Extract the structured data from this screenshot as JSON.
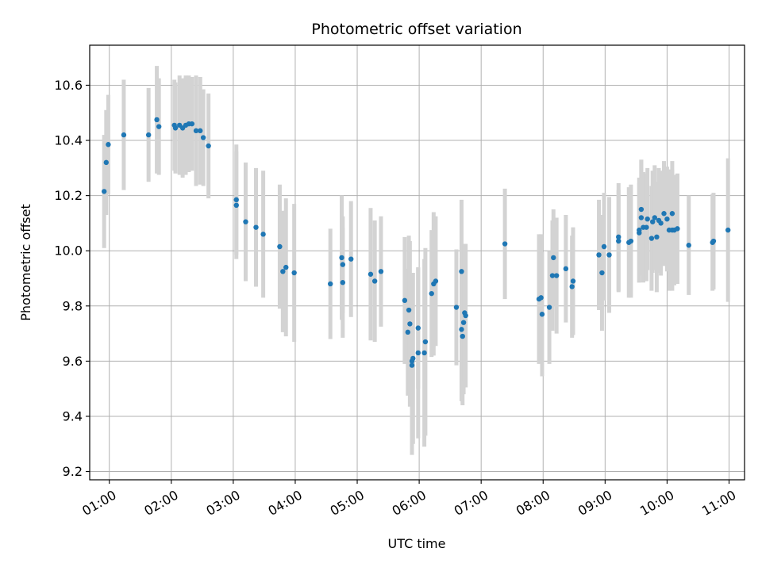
{
  "chart_data": {
    "type": "scatter",
    "title": "Photometric offset variation",
    "xlabel": "UTC time",
    "ylabel": "Photometric offset",
    "x_unit": "UTC",
    "xlim": [
      "00:41",
      "11:15"
    ],
    "ylim": [
      9.17,
      10.745
    ],
    "grid": true,
    "x_ticks": [
      "01:00",
      "02:00",
      "03:00",
      "04:00",
      "05:00",
      "06:00",
      "07:00",
      "08:00",
      "09:00",
      "10:00",
      "11:00"
    ],
    "y_ticks": [
      9.2,
      9.4,
      9.6,
      9.8,
      10.0,
      10.2,
      10.4,
      10.6
    ],
    "y_tick_labels": [
      "9.2",
      "9.4",
      "9.6",
      "9.8",
      "10.0",
      "10.2",
      "10.4",
      "10.6"
    ],
    "colors": {
      "marker": "#1f77b4",
      "errorbar": "#d3d3d3",
      "grid": "#b0b0b0"
    },
    "series": [
      {
        "marker": "point",
        "errorbar": true,
        "points": [
          [
            "00:55",
            10.215,
            0.205
          ],
          [
            "00:57",
            10.32,
            0.19
          ],
          [
            "00:59",
            10.385,
            0.18
          ],
          [
            "01:14",
            10.42,
            0.2
          ],
          [
            "01:38",
            10.42,
            0.17
          ],
          [
            "01:46",
            10.475,
            0.195
          ],
          [
            "01:48",
            10.45,
            0.175
          ],
          [
            "02:03",
            10.455,
            0.165
          ],
          [
            "02:04",
            10.445,
            0.165
          ],
          [
            "02:08",
            10.455,
            0.18
          ],
          [
            "02:11",
            10.445,
            0.18
          ],
          [
            "02:14",
            10.455,
            0.18
          ],
          [
            "02:17",
            10.46,
            0.175
          ],
          [
            "02:20",
            10.46,
            0.17
          ],
          [
            "02:24",
            10.435,
            0.2
          ],
          [
            "02:28",
            10.435,
            0.195
          ],
          [
            "02:31",
            10.41,
            0.175
          ],
          [
            "02:36",
            10.38,
            0.19
          ],
          [
            "03:03",
            10.185,
            0.2
          ],
          [
            "03:03",
            10.165,
            0.195
          ],
          [
            "03:12",
            10.105,
            0.215
          ],
          [
            "03:22",
            10.085,
            0.215
          ],
          [
            "03:29",
            10.06,
            0.23
          ],
          [
            "03:45",
            10.015,
            0.225
          ],
          [
            "03:48",
            9.925,
            0.22
          ],
          [
            "03:51",
            9.94,
            0.25
          ],
          [
            "03:59",
            9.92,
            0.25
          ],
          [
            "04:34",
            9.88,
            0.2
          ],
          [
            "04:45",
            9.975,
            0.225
          ],
          [
            "04:46",
            9.885,
            0.2
          ],
          [
            "04:46",
            9.95,
            0.175
          ],
          [
            "04:54",
            9.97,
            0.21
          ],
          [
            "05:13",
            9.915,
            0.24
          ],
          [
            "05:17",
            9.89,
            0.22
          ],
          [
            "05:23",
            9.925,
            0.2
          ],
          [
            "05:46",
            9.82,
            0.23
          ],
          [
            "05:49",
            9.705,
            0.23
          ],
          [
            "05:50",
            9.785,
            0.27
          ],
          [
            "05:51",
            9.735,
            0.3
          ],
          [
            "05:53",
            9.585,
            0.325
          ],
          [
            "05:53",
            9.6,
            0.31
          ],
          [
            "05:54",
            9.61,
            0.31
          ],
          [
            "05:59",
            9.72,
            0.22
          ],
          [
            "05:59",
            9.63,
            0.31
          ],
          [
            "06:05",
            9.63,
            0.34
          ],
          [
            "06:06",
            9.67,
            0.34
          ],
          [
            "06:12",
            9.845,
            0.23
          ],
          [
            "06:14",
            9.88,
            0.26
          ],
          [
            "06:16",
            9.89,
            0.235
          ],
          [
            "06:36",
            9.795,
            0.21
          ],
          [
            "06:41",
            9.925,
            0.26
          ],
          [
            "06:41",
            9.715,
            0.26
          ],
          [
            "06:42",
            9.69,
            0.25
          ],
          [
            "06:43",
            9.74,
            0.26
          ],
          [
            "06:44",
            9.775,
            0.25
          ],
          [
            "06:45",
            9.765,
            0.26
          ],
          [
            "07:23",
            10.025,
            0.2
          ],
          [
            "07:56",
            9.825,
            0.235
          ],
          [
            "07:58",
            9.83,
            0.23
          ],
          [
            "07:59",
            9.77,
            0.225
          ],
          [
            "08:06",
            9.795,
            0.205
          ],
          [
            "08:09",
            9.91,
            0.2
          ],
          [
            "08:10",
            9.975,
            0.175
          ],
          [
            "08:13",
            9.91,
            0.21
          ],
          [
            "08:22",
            9.935,
            0.195
          ],
          [
            "08:28",
            9.87,
            0.185
          ],
          [
            "08:29",
            9.89,
            0.195
          ],
          [
            "08:54",
            9.985,
            0.2
          ],
          [
            "08:57",
            9.92,
            0.21
          ],
          [
            "08:59",
            10.015,
            0.195
          ],
          [
            "09:04",
            9.985,
            0.21
          ],
          [
            "09:13",
            10.035,
            0.185
          ],
          [
            "09:13",
            10.05,
            0.195
          ],
          [
            "09:23",
            10.03,
            0.2
          ],
          [
            "09:25",
            10.035,
            0.205
          ],
          [
            "09:33",
            10.065,
            0.18
          ],
          [
            "09:33",
            10.075,
            0.19
          ],
          [
            "09:35",
            10.12,
            0.21
          ],
          [
            "09:35",
            10.15,
            0.18
          ],
          [
            "09:37",
            10.085,
            0.2
          ],
          [
            "09:40",
            10.085,
            0.195
          ],
          [
            "09:41",
            10.115,
            0.185
          ],
          [
            "09:45",
            10.045,
            0.19
          ],
          [
            "09:46",
            10.105,
            0.185
          ],
          [
            "09:48",
            10.12,
            0.19
          ],
          [
            "09:50",
            10.05,
            0.2
          ],
          [
            "09:52",
            10.11,
            0.19
          ],
          [
            "09:54",
            10.1,
            0.19
          ],
          [
            "09:57",
            10.135,
            0.19
          ],
          [
            "10:00",
            10.115,
            0.19
          ],
          [
            "10:02",
            10.075,
            0.22
          ],
          [
            "10:05",
            10.075,
            0.22
          ],
          [
            "10:05",
            10.135,
            0.19
          ],
          [
            "10:07",
            10.075,
            0.2
          ],
          [
            "10:10",
            10.08,
            0.2
          ],
          [
            "10:21",
            10.02,
            0.18
          ],
          [
            "10:44",
            10.03,
            0.175
          ],
          [
            "10:45",
            10.035,
            0.175
          ],
          [
            "10:59",
            10.075,
            0.26
          ]
        ]
      }
    ]
  }
}
